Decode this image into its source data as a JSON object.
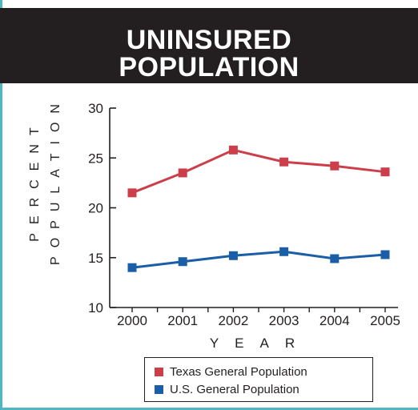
{
  "header": {
    "title": "UNINSURED\nPOPULATION"
  },
  "colors": {
    "header_bg": "#231f20",
    "border_accent": "#4fb7c4",
    "texas": "#cc3f4a",
    "us": "#1a5ea8"
  },
  "chart_data": {
    "type": "line",
    "title": "UNINSURED POPULATION",
    "x": [
      2000,
      2001,
      2002,
      2003,
      2004,
      2005
    ],
    "xlabel": "YEAR",
    "ylabel": "PERCENT POPULATION",
    "ylim": [
      10,
      30
    ],
    "yticks": [
      10,
      15,
      20,
      25,
      30
    ],
    "grid": false,
    "legend_position": "bottom",
    "series": [
      {
        "name": "Texas General Population",
        "color": "#cc3f4a",
        "values": [
          21.5,
          23.5,
          25.8,
          24.6,
          24.2,
          23.6
        ]
      },
      {
        "name": "U.S. General Population",
        "color": "#1a5ea8",
        "values": [
          14.0,
          14.6,
          15.2,
          15.6,
          14.9,
          15.3
        ]
      }
    ]
  }
}
